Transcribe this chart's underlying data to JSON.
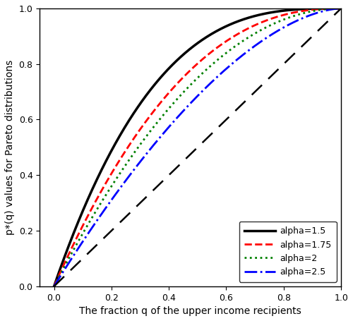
{
  "alphas": [
    1.5,
    1.75,
    2.0,
    2.5
  ],
  "colors": [
    "black",
    "red",
    "green",
    "blue"
  ],
  "linestyles": [
    "-",
    "--",
    ":",
    "-."
  ],
  "linewidths": [
    2.5,
    2.0,
    2.0,
    2.0
  ],
  "legend_labels": [
    "alpha=1.5",
    "alpha=1.75",
    "alpha=2",
    "alpha=2.5"
  ],
  "xlabel": "The fraction q of the upper income recipients",
  "ylabel": "p*(q) values for Pareto distributions",
  "xlim": [
    -0.05,
    1.0
  ],
  "ylim": [
    0.0,
    1.0
  ],
  "xticks": [
    0.0,
    0.2,
    0.4,
    0.6,
    0.8,
    1.0
  ],
  "yticks": [
    0.0,
    0.2,
    0.4,
    0.6,
    0.8,
    1.0
  ],
  "n_points": 1000,
  "background_color": "#ffffff",
  "legend_loc": "lower right",
  "diagonal_dashes": [
    8,
    5
  ]
}
